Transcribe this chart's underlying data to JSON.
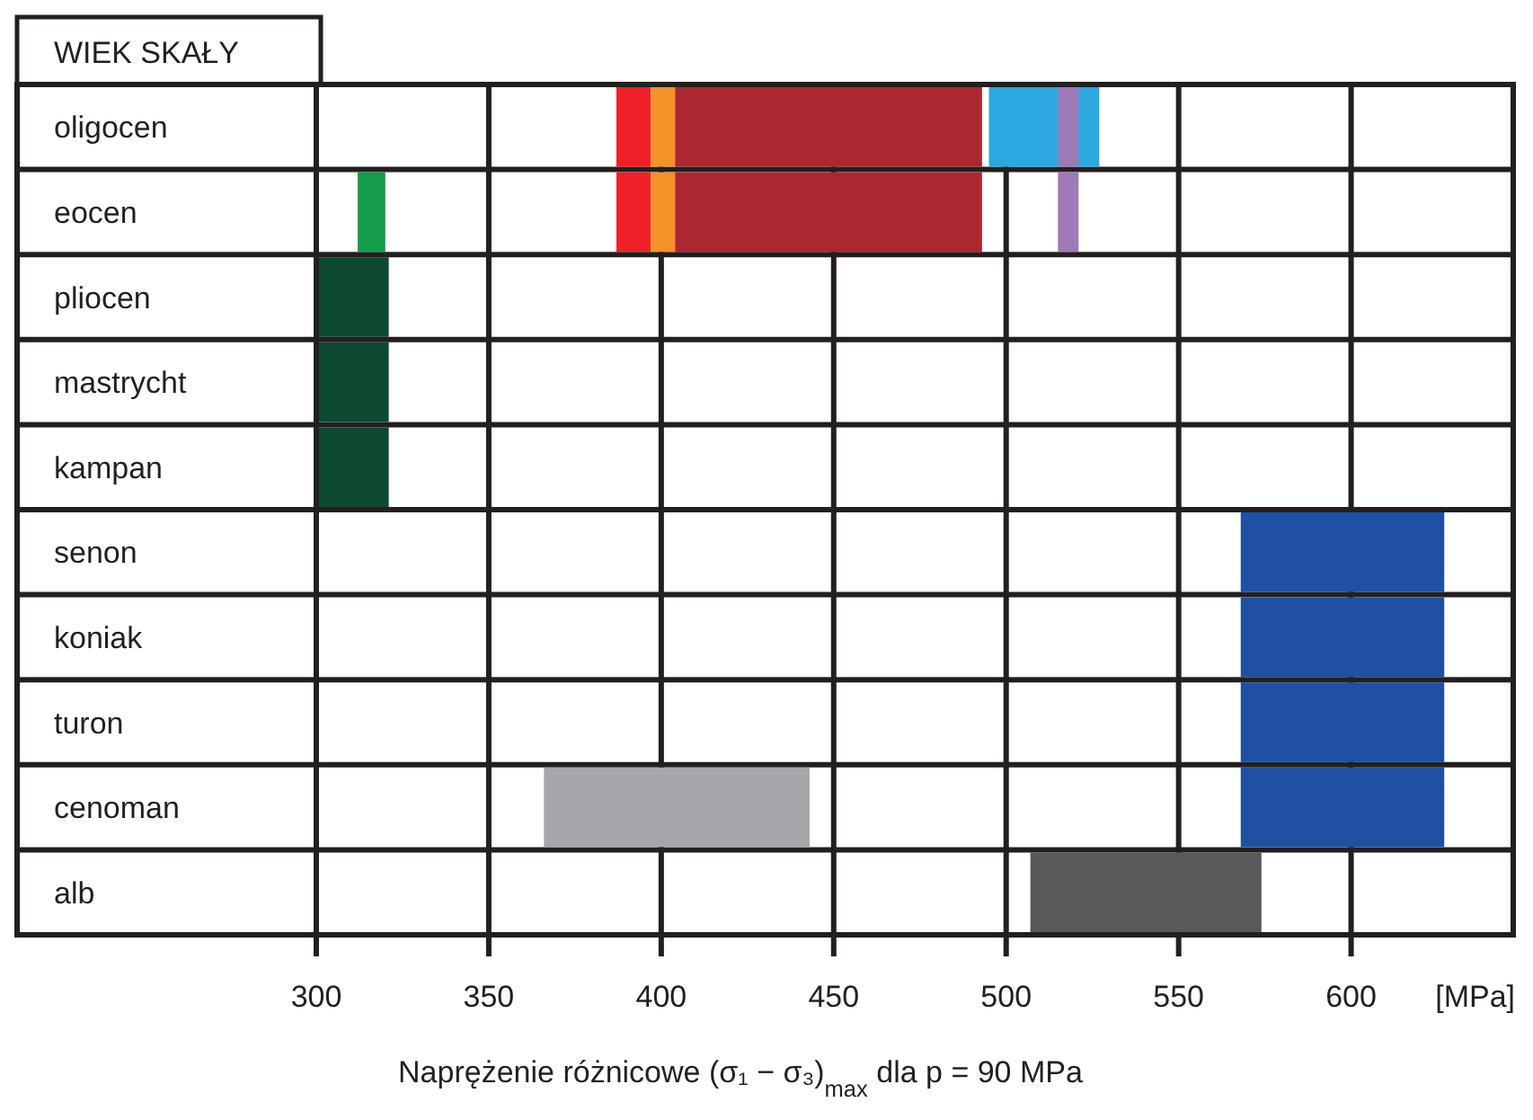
{
  "chart_data": {
    "type": "bar",
    "orientation": "horizontal",
    "ylabel": "WIEK SKAŁY",
    "xlabel": "Naprężenie różnicowe (σ₁ − σ₃)$_{max}$  dla p = 90 MPa",
    "annotations": [
      "[MPa]"
    ],
    "categories": [
      "oligocen",
      "eocen",
      "pliocen",
      "mastrycht",
      "kampan",
      "senon",
      "koniak",
      "turon",
      "cenoman",
      "alb"
    ],
    "xlim": [
      300,
      647
    ],
    "xticks": [
      300,
      350,
      400,
      450,
      500,
      550,
      600
    ],
    "grid": true,
    "series": [
      {
        "color": "#ed2127",
        "base": [
          387,
          387,
          null,
          null,
          null,
          null,
          null,
          null,
          null,
          null
        ],
        "values": [
          10,
          10,
          null,
          null,
          null,
          null,
          null,
          null,
          null,
          null
        ]
      },
      {
        "color": "#f4922a",
        "base": [
          397,
          397,
          null,
          null,
          null,
          null,
          null,
          null,
          null,
          null
        ],
        "values": [
          7,
          7,
          null,
          null,
          null,
          null,
          null,
          null,
          null,
          null
        ]
      },
      {
        "color": "#ac2830",
        "base": [
          404,
          404,
          null,
          null,
          null,
          null,
          null,
          null,
          null,
          null
        ],
        "values": [
          89,
          89,
          null,
          null,
          null,
          null,
          null,
          null,
          null,
          null
        ]
      },
      {
        "color": "#2ca8e0",
        "base": [
          495,
          null,
          null,
          null,
          null,
          null,
          null,
          null,
          null,
          null
        ],
        "values": [
          32,
          null,
          null,
          null,
          null,
          null,
          null,
          null,
          null,
          null
        ]
      },
      {
        "color": "#9e7ab8",
        "base": [
          515,
          515,
          null,
          null,
          null,
          null,
          null,
          null,
          null,
          null
        ],
        "values": [
          6,
          6,
          null,
          null,
          null,
          null,
          null,
          null,
          null,
          null
        ]
      },
      {
        "color": "#149c4a",
        "base": [
          null,
          312,
          null,
          null,
          null,
          null,
          null,
          null,
          null,
          null
        ],
        "values": [
          null,
          8,
          null,
          null,
          null,
          null,
          null,
          null,
          null,
          null
        ]
      },
      {
        "color": "#0d4a31",
        "base": [
          null,
          null,
          300,
          300,
          300,
          null,
          null,
          null,
          null,
          null
        ],
        "values": [
          null,
          null,
          21,
          21,
          21,
          null,
          null,
          null,
          null,
          null
        ]
      },
      {
        "color": "#1f50a2",
        "base": [
          null,
          null,
          null,
          null,
          null,
          568,
          568,
          568,
          568,
          null
        ],
        "values": [
          null,
          null,
          null,
          null,
          null,
          59,
          59,
          59,
          59,
          null
        ]
      },
      {
        "color": "#a6a7aa",
        "base": [
          null,
          null,
          null,
          null,
          null,
          null,
          null,
          null,
          366,
          null
        ],
        "values": [
          null,
          null,
          null,
          null,
          null,
          null,
          null,
          null,
          77,
          null
        ]
      },
      {
        "color": "#58595b",
        "base": [
          null,
          null,
          null,
          null,
          null,
          null,
          null,
          null,
          null,
          507
        ],
        "values": [
          null,
          null,
          null,
          null,
          null,
          null,
          null,
          null,
          null,
          67
        ]
      }
    ]
  }
}
